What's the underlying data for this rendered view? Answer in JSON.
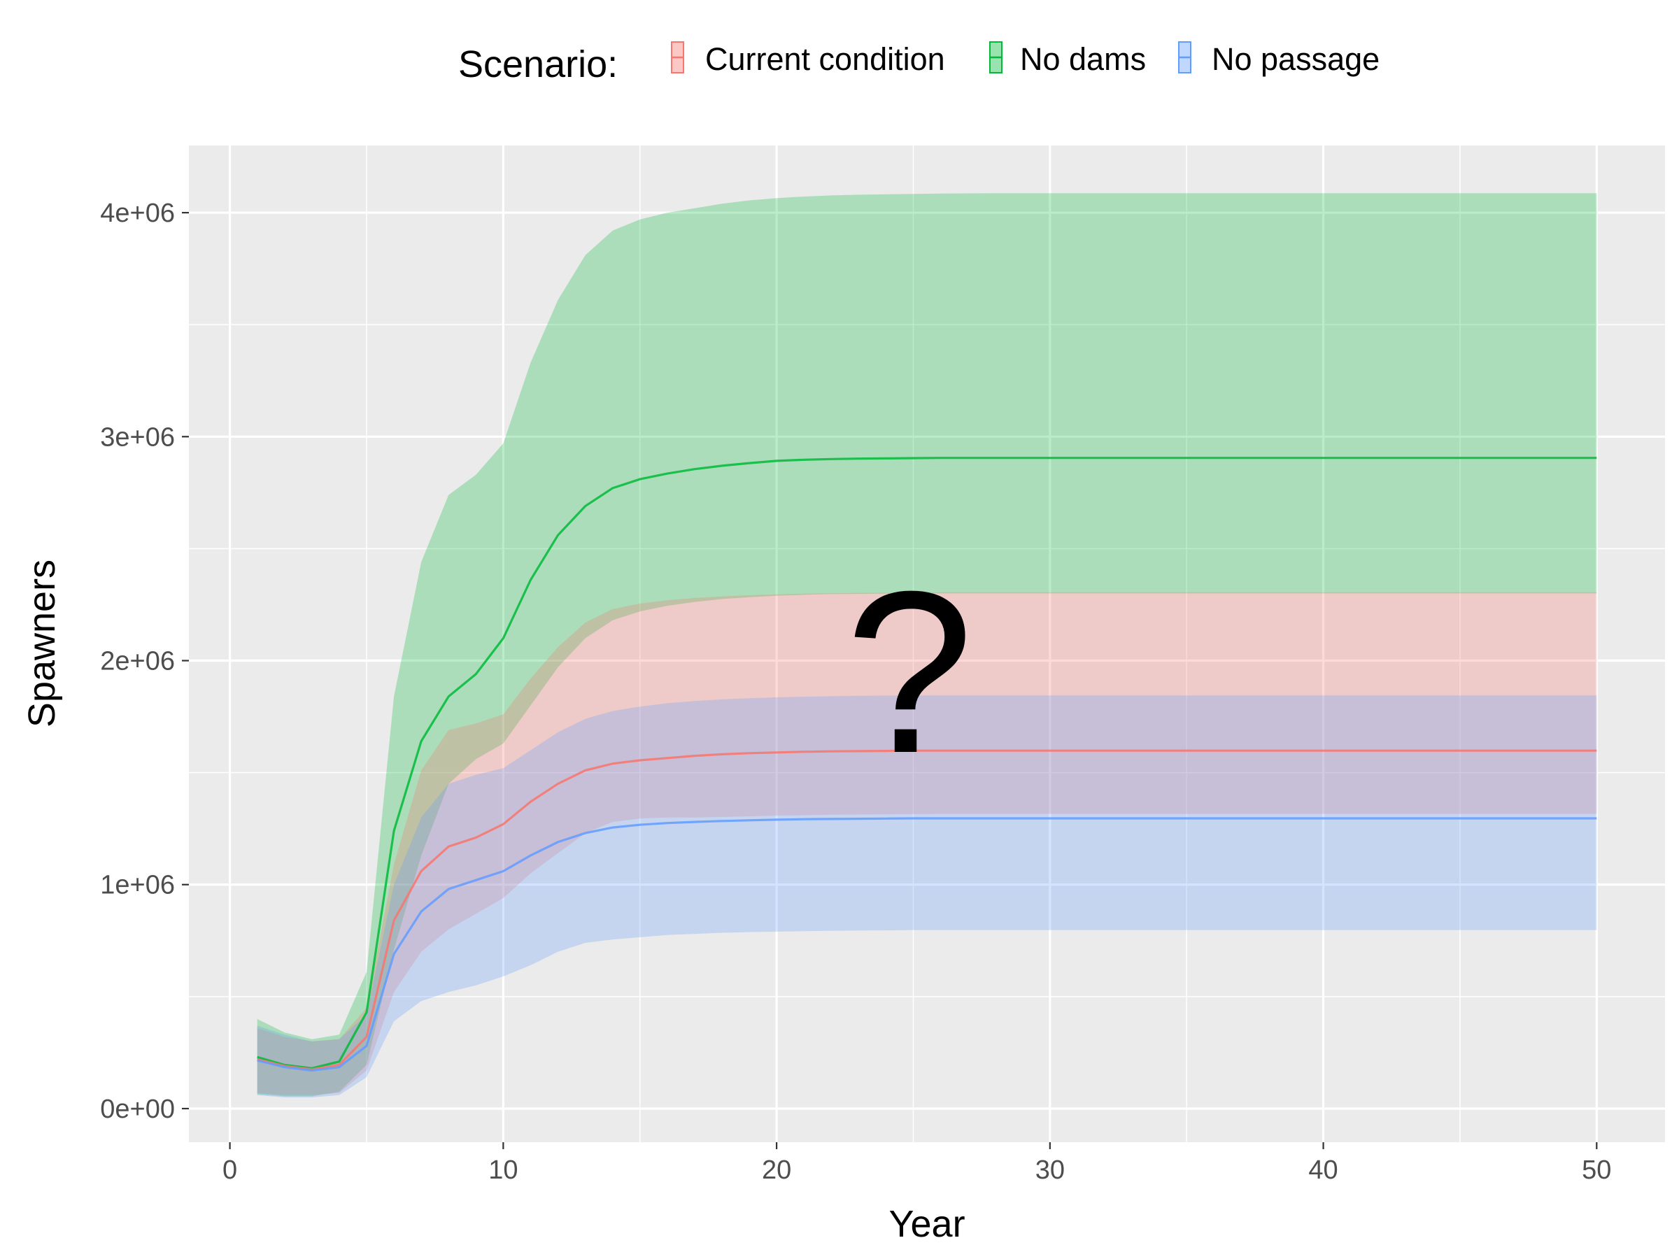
{
  "chart_data": {
    "type": "area",
    "title": "",
    "xlabel": "Year",
    "ylabel": "Spawners",
    "xlim": [
      -1.5,
      52.5
    ],
    "ylim": [
      -150000,
      4300000
    ],
    "x_ticks": [
      0,
      10,
      20,
      30,
      40,
      50
    ],
    "x_tick_labels": [
      "0",
      "10",
      "20",
      "30",
      "40",
      "50"
    ],
    "y_ticks": [
      0,
      1000000,
      2000000,
      3000000,
      4000000
    ],
    "y_tick_labels": [
      "0e+00",
      "1e+06",
      "2e+06",
      "3e+06",
      "4e+06"
    ],
    "grid": true,
    "legend": {
      "title": "Scenario:",
      "position": "top",
      "entries": [
        "Current condition",
        "No dams",
        "No passage"
      ]
    },
    "annotation": "?",
    "x": [
      1,
      2,
      3,
      4,
      5,
      6,
      7,
      8,
      9,
      10,
      11,
      12,
      13,
      14,
      15,
      16,
      17,
      18,
      19,
      20,
      21,
      22,
      23,
      24,
      25,
      26,
      27,
      28,
      29,
      30,
      31,
      32,
      33,
      34,
      35,
      36,
      37,
      38,
      39,
      40,
      41,
      42,
      43,
      44,
      45,
      46,
      47,
      48,
      49,
      50
    ],
    "series": [
      {
        "name": "No dams",
        "color": "#00ba38",
        "fill_opacity": 0.27,
        "mean": [
          230000,
          195000,
          180000,
          210000,
          430000,
          1240000,
          1640000,
          1840000,
          1940000,
          2100000,
          2360000,
          2560000,
          2690000,
          2770000,
          2810000,
          2835000,
          2855000,
          2870000,
          2882000,
          2892000,
          2897000,
          2900000,
          2902000,
          2903000,
          2904000,
          2905000,
          2905000,
          2905000,
          2905000,
          2905000,
          2905000,
          2905000,
          2905000,
          2905000,
          2905000,
          2905000,
          2905000,
          2905000,
          2905000,
          2905000,
          2905000,
          2905000,
          2905000,
          2905000,
          2905000,
          2905000,
          2905000,
          2905000,
          2905000,
          2905000
        ],
        "upper": [
          400000,
          340000,
          310000,
          330000,
          610000,
          1840000,
          2440000,
          2740000,
          2830000,
          2970000,
          3330000,
          3610000,
          3810000,
          3920000,
          3970000,
          4000000,
          4020000,
          4040000,
          4055000,
          4065000,
          4072000,
          4077000,
          4080000,
          4082000,
          4084000,
          4085000,
          4086000,
          4087000,
          4087000,
          4087000,
          4087000,
          4087000,
          4087000,
          4087000,
          4087000,
          4087000,
          4087000,
          4087000,
          4087000,
          4087000,
          4087000,
          4087000,
          4087000,
          4087000,
          4087000,
          4087000,
          4087000,
          4087000,
          4087000,
          4087000
        ],
        "lower": [
          65000,
          55000,
          55000,
          75000,
          195000,
          710000,
          1130000,
          1450000,
          1560000,
          1630000,
          1800000,
          1970000,
          2100000,
          2180000,
          2220000,
          2245000,
          2262000,
          2275000,
          2283000,
          2290000,
          2294000,
          2297000,
          2298000,
          2299000,
          2300000,
          2300000,
          2300000,
          2300000,
          2300000,
          2300000,
          2300000,
          2300000,
          2300000,
          2300000,
          2300000,
          2300000,
          2300000,
          2300000,
          2300000,
          2300000,
          2300000,
          2300000,
          2300000,
          2300000,
          2300000,
          2300000,
          2300000,
          2300000,
          2300000,
          2300000
        ]
      },
      {
        "name": "Current condition",
        "color": "#f8766d",
        "fill_opacity": 0.27,
        "mean": [
          220000,
          190000,
          175000,
          195000,
          320000,
          840000,
          1060000,
          1170000,
          1210000,
          1270000,
          1370000,
          1450000,
          1510000,
          1540000,
          1555000,
          1565000,
          1575000,
          1582000,
          1587000,
          1590000,
          1593000,
          1595000,
          1596000,
          1597000,
          1598000,
          1598000,
          1598000,
          1598000,
          1598000,
          1598000,
          1598000,
          1598000,
          1598000,
          1598000,
          1598000,
          1598000,
          1598000,
          1598000,
          1598000,
          1598000,
          1598000,
          1598000,
          1598000,
          1598000,
          1598000,
          1598000,
          1598000,
          1598000,
          1598000,
          1598000
        ],
        "upper": [
          360000,
          320000,
          300000,
          310000,
          450000,
          1090000,
          1510000,
          1690000,
          1720000,
          1760000,
          1920000,
          2060000,
          2170000,
          2230000,
          2255000,
          2270000,
          2280000,
          2287000,
          2292000,
          2296000,
          2299000,
          2301000,
          2302000,
          2303000,
          2304000,
          2305000,
          2305000,
          2305000,
          2305000,
          2305000,
          2305000,
          2305000,
          2305000,
          2305000,
          2305000,
          2305000,
          2305000,
          2305000,
          2305000,
          2305000,
          2305000,
          2305000,
          2305000,
          2305000,
          2305000,
          2305000,
          2305000,
          2305000,
          2305000,
          2305000
        ],
        "lower": [
          70000,
          60000,
          60000,
          70000,
          170000,
          520000,
          700000,
          800000,
          870000,
          940000,
          1050000,
          1140000,
          1230000,
          1280000,
          1295000,
          1300000,
          1300000,
          1302000,
          1305000,
          1308000,
          1310000,
          1312000,
          1313000,
          1314000,
          1315000,
          1316000,
          1316000,
          1316000,
          1316000,
          1316000,
          1316000,
          1316000,
          1316000,
          1316000,
          1316000,
          1316000,
          1316000,
          1316000,
          1316000,
          1316000,
          1316000,
          1316000,
          1316000,
          1316000,
          1316000,
          1316000,
          1316000,
          1316000,
          1316000,
          1316000
        ]
      },
      {
        "name": "No passage",
        "color": "#619cff",
        "fill_opacity": 0.27,
        "mean": [
          215000,
          185000,
          170000,
          185000,
          280000,
          690000,
          880000,
          980000,
          1020000,
          1060000,
          1130000,
          1190000,
          1230000,
          1255000,
          1267000,
          1275000,
          1280000,
          1284000,
          1287000,
          1290000,
          1292000,
          1293000,
          1294000,
          1295000,
          1296000,
          1296000,
          1296000,
          1296000,
          1296000,
          1296000,
          1296000,
          1296000,
          1296000,
          1296000,
          1296000,
          1296000,
          1296000,
          1296000,
          1296000,
          1296000,
          1296000,
          1296000,
          1296000,
          1296000,
          1296000,
          1296000,
          1296000,
          1296000,
          1296000,
          1296000
        ],
        "upper": [
          370000,
          330000,
          300000,
          310000,
          420000,
          1000000,
          1300000,
          1450000,
          1490000,
          1520000,
          1600000,
          1680000,
          1740000,
          1775000,
          1795000,
          1810000,
          1820000,
          1827000,
          1832000,
          1836000,
          1839000,
          1841000,
          1843000,
          1844000,
          1845000,
          1845000,
          1845000,
          1845000,
          1845000,
          1845000,
          1845000,
          1845000,
          1845000,
          1845000,
          1845000,
          1845000,
          1845000,
          1845000,
          1845000,
          1845000,
          1845000,
          1845000,
          1845000,
          1845000,
          1845000,
          1845000,
          1845000,
          1845000,
          1845000,
          1845000
        ],
        "lower": [
          60000,
          50000,
          50000,
          60000,
          140000,
          390000,
          480000,
          520000,
          550000,
          590000,
          640000,
          700000,
          740000,
          755000,
          765000,
          775000,
          780000,
          785000,
          788000,
          790000,
          792000,
          794000,
          795000,
          796000,
          797000,
          797000,
          797000,
          797000,
          797000,
          797000,
          797000,
          797000,
          797000,
          797000,
          797000,
          797000,
          797000,
          797000,
          797000,
          797000,
          797000,
          797000,
          797000,
          797000,
          797000,
          797000,
          797000,
          797000,
          797000,
          797000
        ]
      }
    ]
  }
}
